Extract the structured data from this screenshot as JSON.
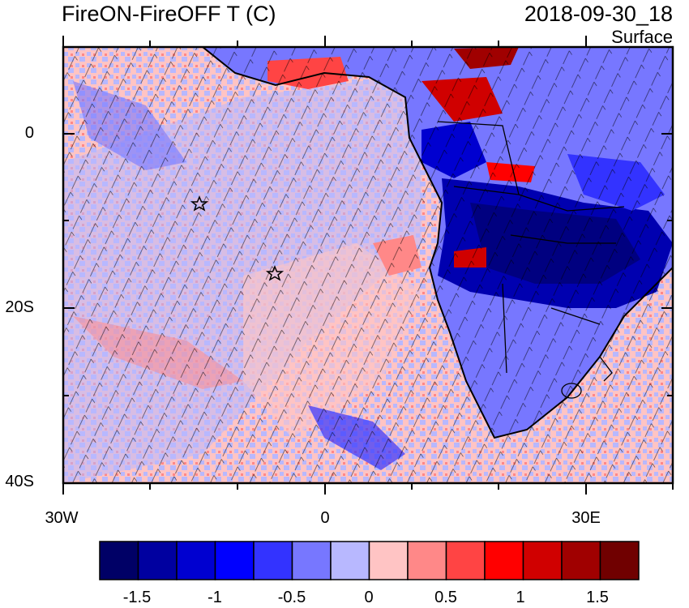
{
  "title": {
    "left": "FireON-FireOFF T (C)",
    "right": "2018-09-30_18",
    "level": "Surface"
  },
  "axes": {
    "lat_labels": [
      "0",
      "20S",
      "40S"
    ],
    "lon_labels": [
      "30W",
      "0",
      "30E"
    ]
  },
  "colorbar": {
    "labels": [
      "-1.5",
      "-1",
      "-0.5",
      "0",
      "0.5",
      "1",
      "1.5"
    ],
    "colors": [
      "#000066",
      "#0000a0",
      "#0000d0",
      "#0000ff",
      "#3333ff",
      "#7777ff",
      "#b8b8ff",
      "#ffc4c4",
      "#ff8888",
      "#ff4444",
      "#ff0000",
      "#d00000",
      "#a00000",
      "#700000"
    ]
  },
  "markers": [
    {
      "name": "star-1",
      "lon": -14.3,
      "lat": -8.0
    },
    {
      "name": "star-2",
      "lon": -5.7,
      "lat": -16.0
    }
  ]
}
